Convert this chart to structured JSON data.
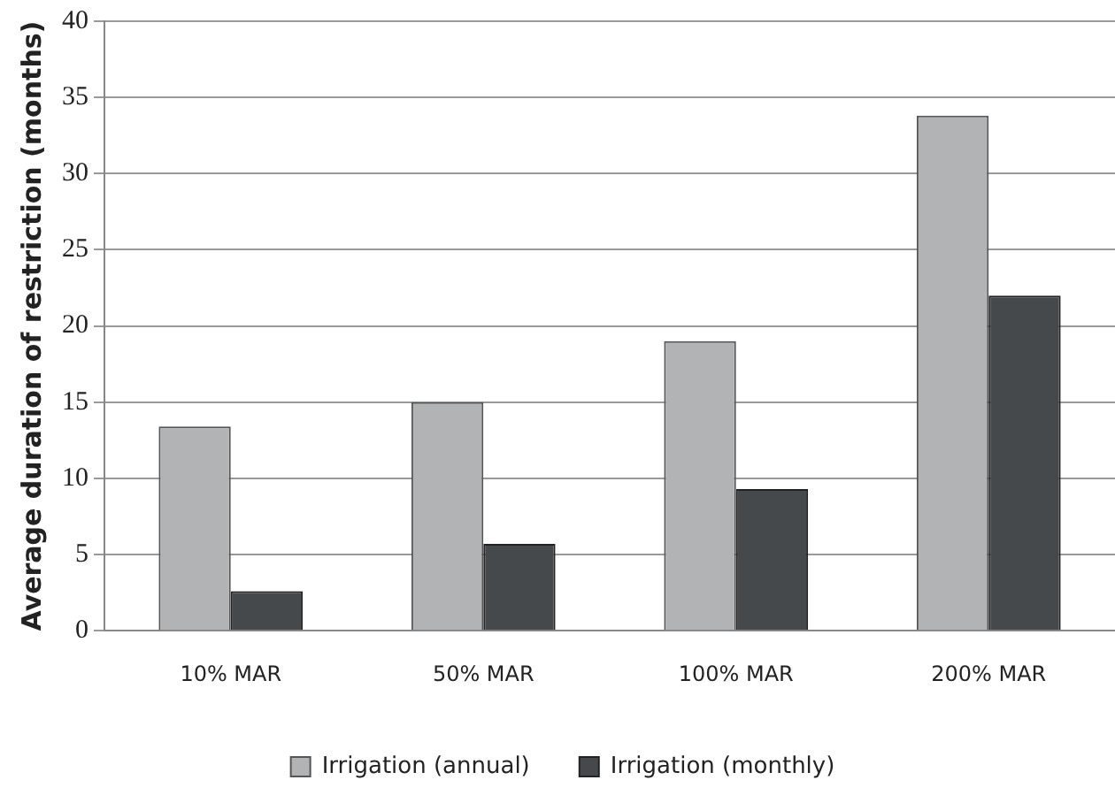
{
  "chart_data": {
    "type": "bar",
    "ylabel": "Average duration of restriction (months)",
    "categories": [
      "10% MAR",
      "50% MAR",
      "100% MAR",
      "200% MAR"
    ],
    "series": [
      {
        "name": "Irrigation (annual)",
        "color": "#b1b3b4",
        "line_style": "dashed",
        "values": [
          13.4,
          15.0,
          19.0,
          33.8
        ]
      },
      {
        "name": "Irrigation (monthly)",
        "color": "#46494b",
        "values": [
          2.6,
          5.7,
          9.3,
          22.0
        ]
      }
    ],
    "ylim": [
      0,
      40
    ],
    "yticks": [
      0,
      5,
      10,
      15,
      20,
      25,
      30,
      35,
      40
    ],
    "grid": "y",
    "legend": "bottom"
  }
}
